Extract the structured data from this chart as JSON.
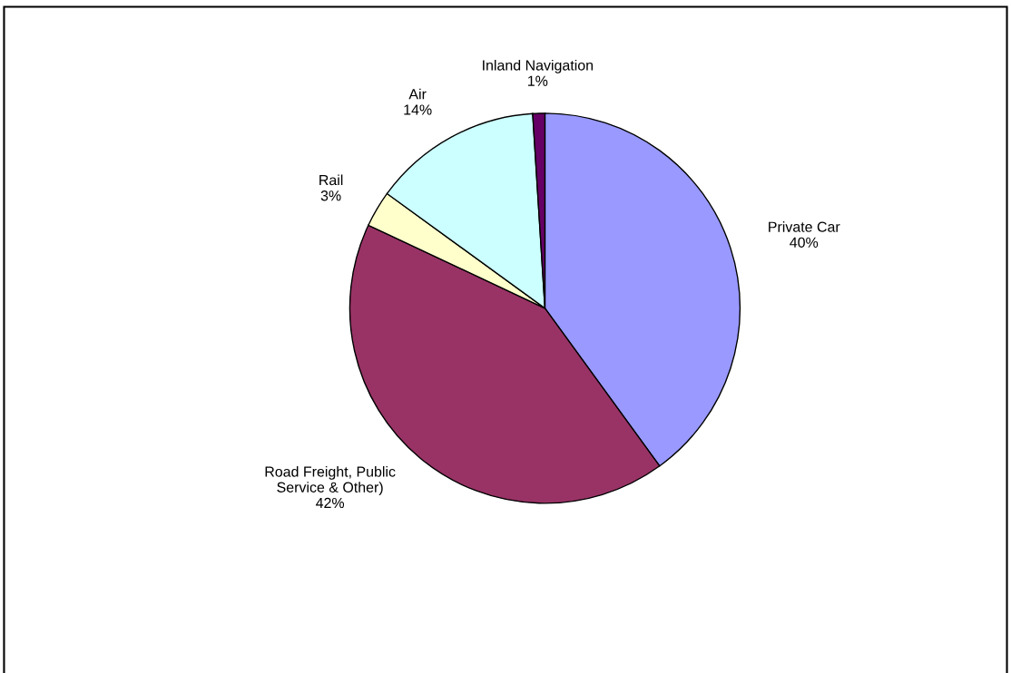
{
  "chart_data": {
    "type": "pie",
    "categories": [
      "Private Car",
      "Road Freight, Public\nService & Other)",
      "Rail",
      "Air",
      "Inland Navigation"
    ],
    "values": [
      40,
      42,
      3,
      14,
      1
    ],
    "colors": [
      "#9999ff",
      "#993366",
      "#ffffcc",
      "#ccffff",
      "#660066"
    ],
    "value_labels": [
      "40%",
      "42%",
      "3%",
      "14%",
      "1%"
    ],
    "legend": false
  }
}
